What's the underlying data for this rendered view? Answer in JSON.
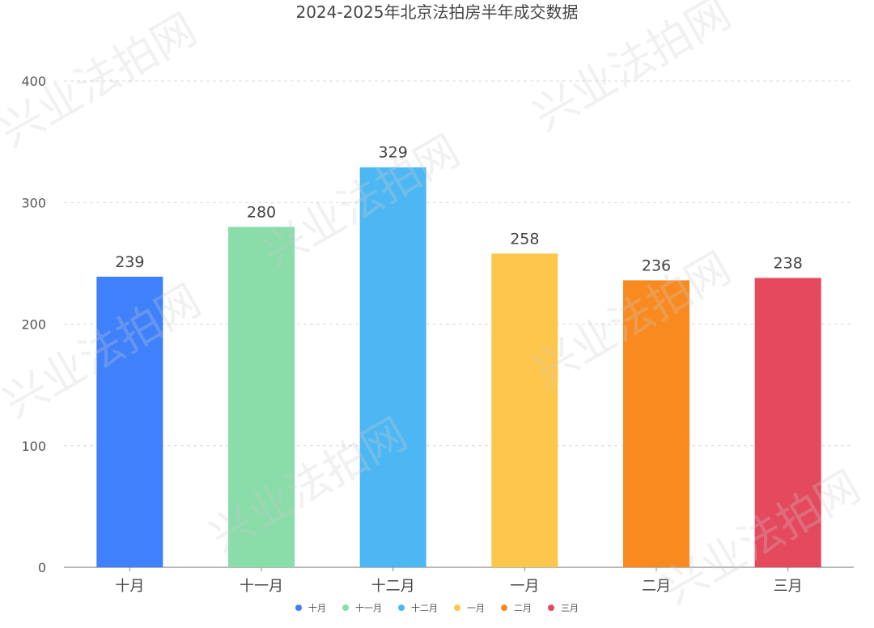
{
  "chart_data": {
    "type": "bar",
    "title": "2024-2025年北京法拍房半年成交数据",
    "xlabel": "",
    "ylabel": "",
    "categories": [
      "十月",
      "十一月",
      "十二月",
      "一月",
      "二月",
      "三月"
    ],
    "values": [
      239,
      280,
      329,
      258,
      236,
      238
    ],
    "colors": [
      "#3f80fb",
      "#8adca9",
      "#4db7f3",
      "#fdc64c",
      "#f98a1f",
      "#e5495d"
    ],
    "ylim": [
      0,
      400
    ],
    "yticks": [
      0,
      100,
      200,
      300,
      400
    ],
    "grid": true,
    "legend_position": "bottom",
    "legend": [
      "十月",
      "十一月",
      "十二月",
      "一月",
      "二月",
      "三月"
    ]
  },
  "watermark": {
    "text": "兴业法拍网"
  }
}
